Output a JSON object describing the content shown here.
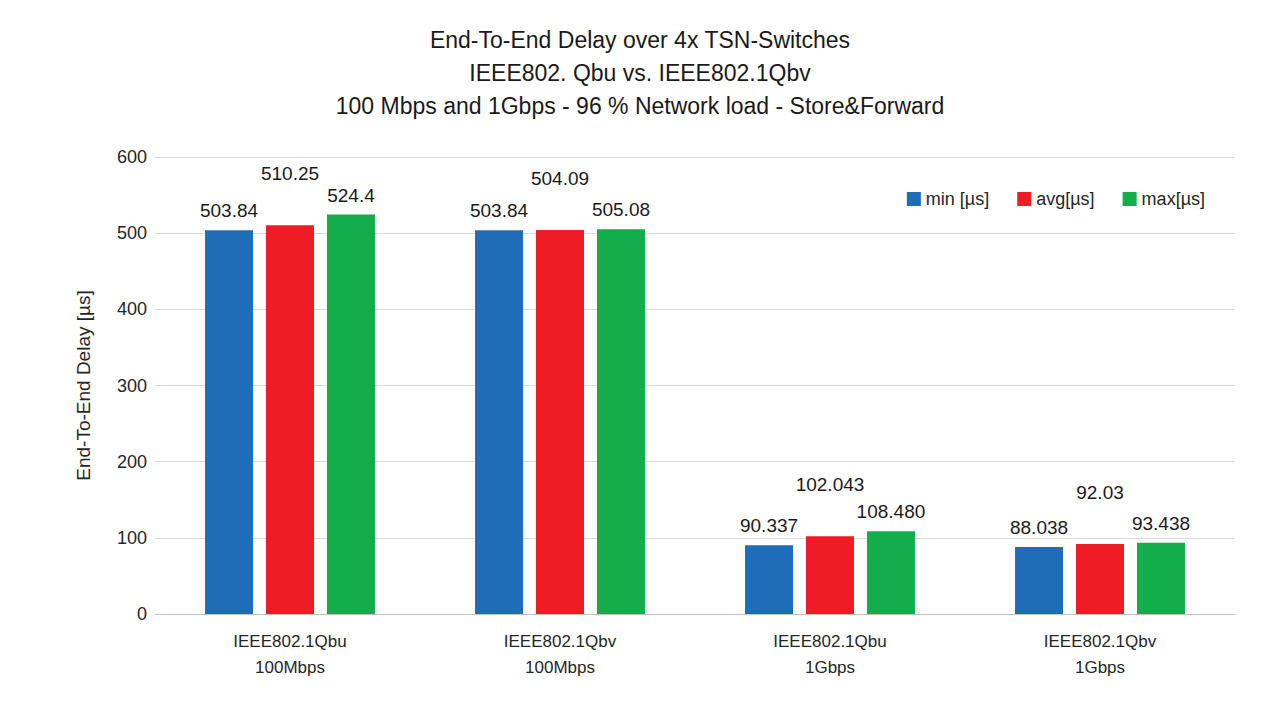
{
  "chart_data": {
    "type": "bar",
    "title": "End-To-End Delay over 4x TSN-Switches\nIEEE802. Qbu vs. IEEE802.1Qbv\n100 Mbps and 1Gbps - 96 % Network load - Store&Forward",
    "y_label": "End-To-End Delay [µs]",
    "categories": [
      "IEEE802.1Qbu\n100Mbps",
      "IEEE802.1Qbv\n100Mbps",
      "IEEE802.1Qbu\n1Gbps",
      "IEEE802.1Qbv\n1Gbps"
    ],
    "series": [
      {
        "name": "min [µs]",
        "color": "#1f6cb8",
        "values": [
          503.84,
          503.84,
          90.337,
          88.038
        ]
      },
      {
        "name": "avg[µs]",
        "color": "#ee1c25",
        "values": [
          510.25,
          504.09,
          102.043,
          92.03
        ]
      },
      {
        "name": "max[µs]",
        "color": "#13ad4c",
        "values": [
          524.4,
          505.08,
          108.48,
          93.438
        ],
        "value_labels": [
          "524.4",
          "505.08",
          "108.480",
          "93.438"
        ]
      }
    ],
    "ylim": [
      0,
      600
    ],
    "yticks": [
      0,
      100,
      200,
      300,
      400,
      500,
      600
    ],
    "grid": true,
    "legend": "upper right",
    "data_labels": true
  }
}
